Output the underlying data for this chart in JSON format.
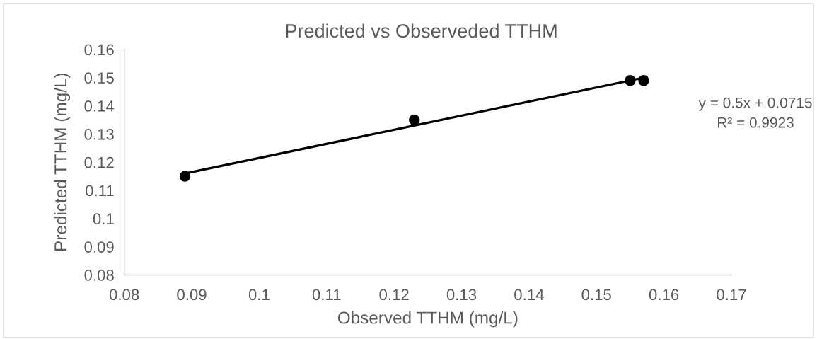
{
  "chart_data": {
    "type": "scatter",
    "title": "Predicted vs Observeded TTHM",
    "xlabel": "Observed TTHM (mg/L)",
    "ylabel": "Predicted TTHM (mg/L)",
    "series": [
      {
        "color": "#000000",
        "marker": "circle",
        "x": [
          0.089,
          0.123,
          0.155,
          0.157
        ],
        "values": [
          0.115,
          0.135,
          0.149,
          0.149
        ]
      },
      {
        "type": "line",
        "color": "#000000",
        "marker": "none",
        "line_style": "solid",
        "x": [
          0.089,
          0.157
        ],
        "values": [
          0.116,
          0.15
        ]
      }
    ],
    "xlim": [
      0.08,
      0.17
    ],
    "xticks": [
      0.08,
      0.09,
      0.1,
      0.11,
      0.12,
      0.13,
      0.14,
      0.15,
      0.16,
      0.17
    ],
    "ylim": [
      0.08,
      0.16
    ],
    "yticks": [
      0.08,
      0.09,
      0.1,
      0.11,
      0.12,
      0.13,
      0.14,
      0.15,
      0.16
    ],
    "annotations": [
      "y = 0.5x + 0.0715",
      "R² = 0.9923"
    ],
    "grid": false
  }
}
